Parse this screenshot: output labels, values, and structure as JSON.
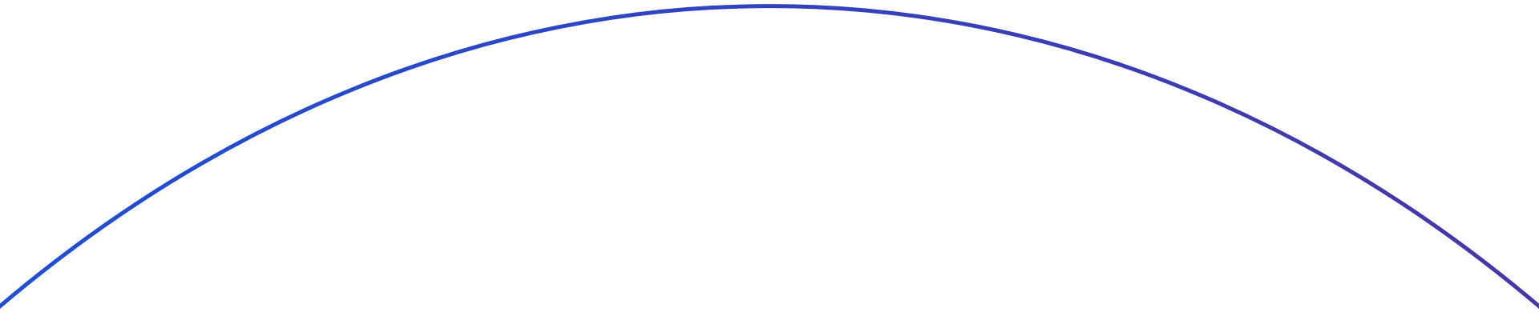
{
  "arc": {
    "color_start": "#1d4fd6",
    "color_end": "#4636a8"
  }
}
